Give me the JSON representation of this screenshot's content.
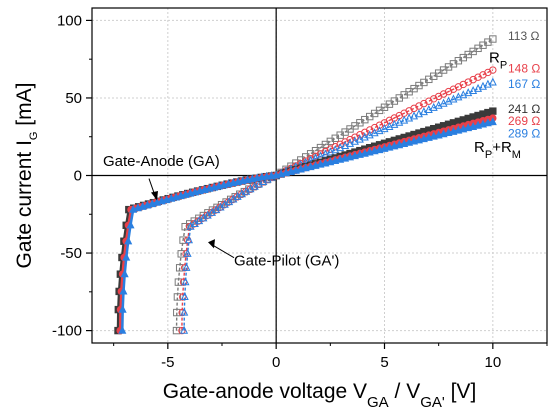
{
  "chart_data": {
    "type": "scatter",
    "xlim": [
      -8.5,
      12.5
    ],
    "ylim": [
      -108,
      108
    ],
    "xticks": [
      -5,
      0,
      5,
      10
    ],
    "yticks": [
      -100,
      -50,
      0,
      50,
      100
    ],
    "grid": true,
    "xlabel": {
      "main": "Gate-anode voltage V",
      "sub1": "GA",
      "mid": " / V",
      "sub2": "GA'",
      "tail": " [V]"
    },
    "ylabel": {
      "main": "Gate current I",
      "sub": "G",
      "tail": " [mA]"
    },
    "colors": {
      "black": "#3a3a3a",
      "red": "#e8404a",
      "blue": "#2a7fe0"
    },
    "groups": {
      "rp_label": "R",
      "rp_sub": "P",
      "rprm_label": "R",
      "rprm_sub1": "P",
      "rprm_plus": "+R",
      "rprm_sub2": "M"
    },
    "series": [
      {
        "name": "113 Ω",
        "color": "#7a7a7a",
        "marker": "square-open",
        "family": "GA'",
        "knee_v": -4.2,
        "vmin": -4.6,
        "slope_pos": 8.8,
        "s_neg": 6.0
      },
      {
        "name": "148 Ω",
        "color": "#e8404a",
        "marker": "circle-open",
        "family": "GA'",
        "knee_v": -4.0,
        "vmin": -4.35,
        "slope_pos": 6.8,
        "s_neg": 6.5
      },
      {
        "name": "167 Ω",
        "color": "#2a7fe0",
        "marker": "triangle-open",
        "family": "GA'",
        "knee_v": -3.95,
        "vmin": -4.25,
        "slope_pos": 6.0,
        "s_neg": 6.8
      },
      {
        "name": "241 Ω",
        "color": "#3a3a3a",
        "marker": "square-filled",
        "family": "GA",
        "knee_v": -6.8,
        "vmin": -7.3,
        "slope_pos": 4.15,
        "s_neg": 3.1
      },
      {
        "name": "269 Ω",
        "color": "#e8404a",
        "marker": "circle-filled",
        "family": "GA",
        "knee_v": -6.7,
        "vmin": -7.2,
        "slope_pos": 3.7,
        "s_neg": 3.3
      },
      {
        "name": "289 Ω",
        "color": "#2a7fe0",
        "marker": "triangle-filled",
        "family": "GA",
        "knee_v": -6.6,
        "vmin": -7.1,
        "slope_pos": 3.45,
        "s_neg": 3.4
      }
    ],
    "annotations": {
      "ga": "Gate-Anode (GA)",
      "gap": "Gate-Pilot (GA')"
    }
  }
}
